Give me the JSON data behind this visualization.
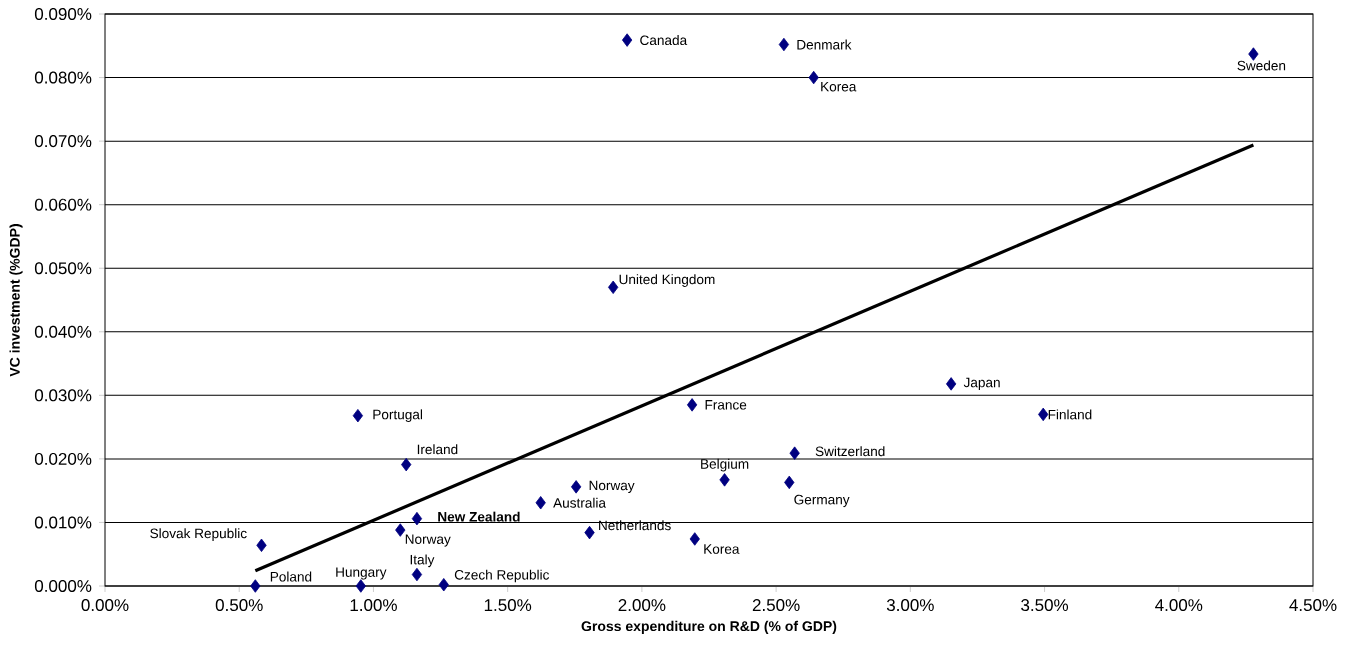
{
  "chart_data": {
    "type": "scatter",
    "xlabel": "Gross expenditure on R&D (% of GDP)",
    "ylabel": "VC investment (%GDP)",
    "series": [
      {
        "color": "#000080",
        "marker": "diamond",
        "x": [
          1.945,
          2.529,
          2.64,
          4.278,
          1.893,
          3.152,
          3.495,
          0.942,
          2.187,
          2.569,
          1.122,
          2.308,
          2.549,
          1.755,
          1.623,
          1.162,
          1.1,
          1.805,
          2.197,
          0.583,
          0.56,
          0.953,
          1.162,
          1.262
        ],
        "values": [
          0.0859,
          0.0852,
          0.08,
          0.0837,
          0.047,
          0.0318,
          0.027,
          0.0268,
          0.0285,
          0.0209,
          0.0191,
          0.0167,
          0.0163,
          0.0156,
          0.0131,
          0.0106,
          0.0088,
          0.0084,
          0.0074,
          0.0064,
          0.0,
          0.0,
          0.0018,
          0.0002
        ]
      },
      {
        "type": "line",
        "color": "#000000",
        "marker": "none",
        "x": [
          0.56,
          4.278
        ],
        "values": [
          0.0024,
          0.0694
        ]
      }
    ],
    "xlim": [
      0,
      4.5
    ],
    "ylim": [
      0,
      0.09
    ],
    "xticks": [
      {
        "value": 0,
        "label": "0.00%"
      },
      {
        "value": 0.5,
        "label": "0.50%"
      },
      {
        "value": 1,
        "label": "1.00%"
      },
      {
        "value": 1.5,
        "label": "1.50%"
      },
      {
        "value": 2,
        "label": "2.00%"
      },
      {
        "value": 2.5,
        "label": "2.50%"
      },
      {
        "value": 3,
        "label": "3.00%"
      },
      {
        "value": 3.5,
        "label": "3.50%"
      },
      {
        "value": 4,
        "label": "4.00%"
      },
      {
        "value": 4.5,
        "label": "4.50%"
      }
    ],
    "yticks": [
      {
        "value": 0,
        "label": "0.000%"
      },
      {
        "value": 0.01,
        "label": "0.010%"
      },
      {
        "value": 0.02,
        "label": "0.020%"
      },
      {
        "value": 0.03,
        "label": "0.030%"
      },
      {
        "value": 0.04,
        "label": "0.040%"
      },
      {
        "value": 0.05,
        "label": "0.050%"
      },
      {
        "value": 0.06,
        "label": "0.060%"
      },
      {
        "value": 0.07,
        "label": "0.070%"
      },
      {
        "value": 0.08,
        "label": "0.080%"
      },
      {
        "value": 0.09,
        "label": "0.090%"
      }
    ],
    "grid": "y",
    "annotations": [
      {
        "text": "Canada",
        "x": 1.945,
        "y": 0.0859
      },
      {
        "text": "Denmark",
        "x": 2.529,
        "y": 0.0852
      },
      {
        "text": "Korea",
        "x": 2.64,
        "y": 0.08
      },
      {
        "text": "Sweden",
        "x": 4.278,
        "y": 0.0837
      },
      {
        "text": "United Kingdom",
        "x": 1.893,
        "y": 0.047
      },
      {
        "text": "Japan",
        "x": 3.152,
        "y": 0.0318
      },
      {
        "text": "Finland",
        "x": 3.495,
        "y": 0.027
      },
      {
        "text": "Portugal",
        "x": 0.942,
        "y": 0.0268
      },
      {
        "text": "France",
        "x": 2.187,
        "y": 0.0285
      },
      {
        "text": "Switzerland",
        "x": 2.569,
        "y": 0.0209
      },
      {
        "text": "Ireland",
        "x": 1.122,
        "y": 0.0191
      },
      {
        "text": "Belgium",
        "x": 2.308,
        "y": 0.0167
      },
      {
        "text": "Germany",
        "x": 2.549,
        "y": 0.0163
      },
      {
        "text": "Norway",
        "x": 1.755,
        "y": 0.0156
      },
      {
        "text": "Australia",
        "x": 1.623,
        "y": 0.0131
      },
      {
        "text": "**New Zealand**",
        "x": 1.162,
        "y": 0.0106
      },
      {
        "text": "Norway",
        "x": 1.1,
        "y": 0.0088
      },
      {
        "text": "Netherlands",
        "x": 1.805,
        "y": 0.0084
      },
      {
        "text": "Korea",
        "x": 2.197,
        "y": 0.0074
      },
      {
        "text": "Slovak Republic",
        "x": 0.583,
        "y": 0.0064
      },
      {
        "text": "Poland",
        "x": 0.56,
        "y": 0.0
      },
      {
        "text": "Hungary",
        "x": 0.953,
        "y": 0.0
      },
      {
        "text": "Italy",
        "x": 1.162,
        "y": 0.0018
      },
      {
        "text": "Czech Republic",
        "x": 1.262,
        "y": 0.0002
      }
    ]
  }
}
